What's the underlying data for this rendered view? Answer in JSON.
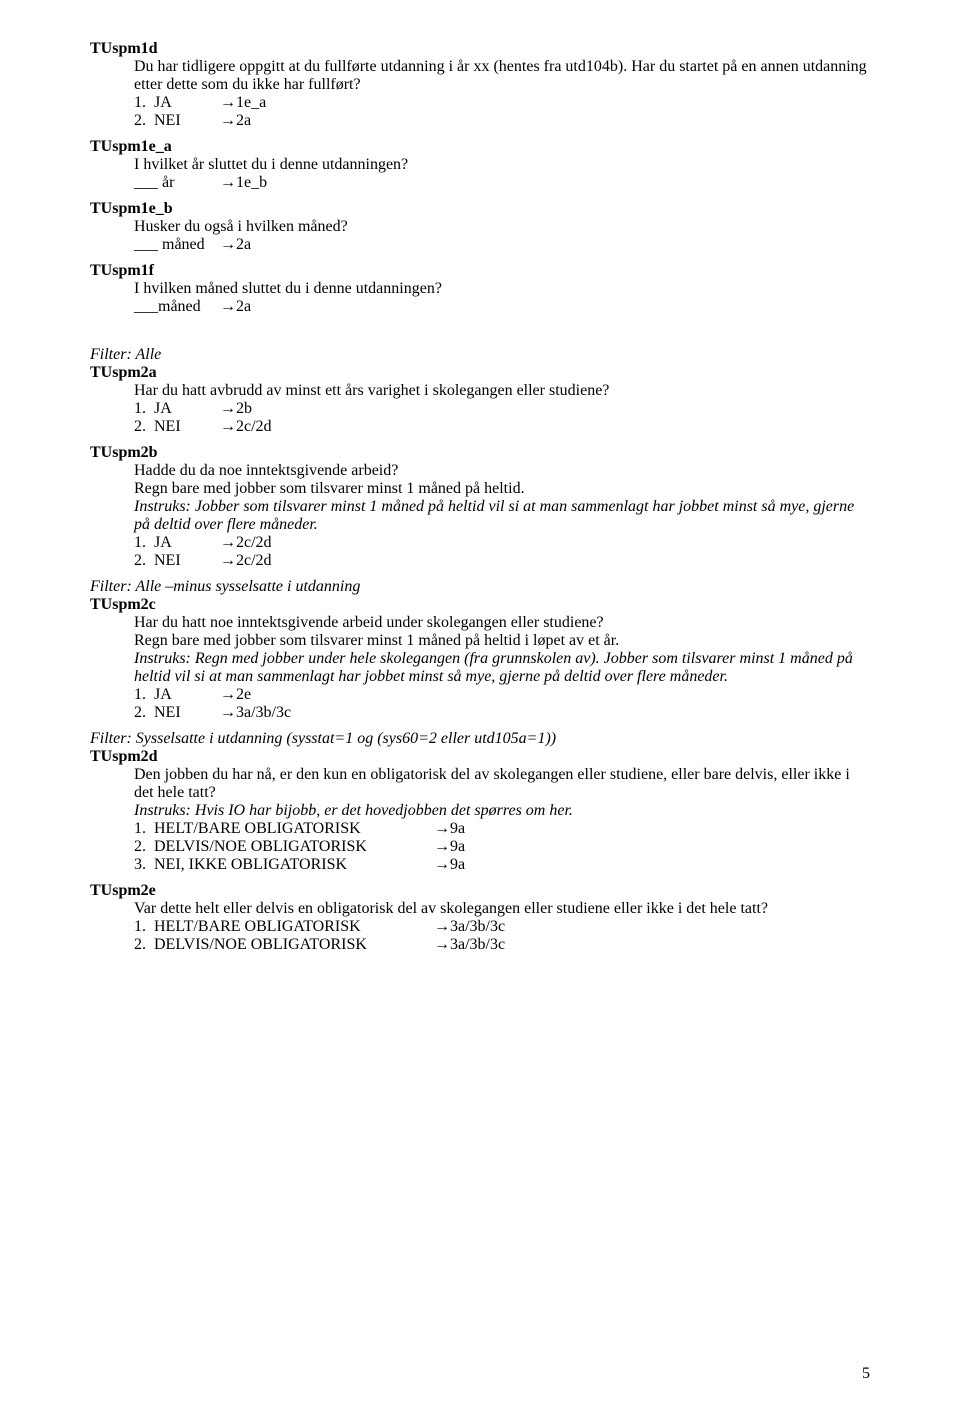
{
  "page_number": "5",
  "arrow": "→",
  "sections": {
    "s1": {
      "heading": "TUspm1d",
      "lines": [
        "Du har tidligere oppgitt at du fullførte utdanning i år xx (hentes fra utd104b). Har du startet på en annen utdanning etter dette som du ikke har fullført?"
      ],
      "options": [
        {
          "label": "1.  JA",
          "goto": "1e_a"
        },
        {
          "label": "2.  NEI",
          "goto": "2a"
        }
      ]
    },
    "s2": {
      "heading": "TUspm1e_a",
      "lines": [
        "I hvilket år sluttet du i denne utdanningen?"
      ],
      "options": [
        {
          "label": "___ år",
          "goto": "1e_b"
        }
      ]
    },
    "s3": {
      "heading": "TUspm1e_b",
      "lines": [
        "Husker du også i hvilken måned?"
      ],
      "options": [
        {
          "label": "___ måned",
          "goto": "2a"
        }
      ]
    },
    "s4": {
      "heading": "TUspm1f",
      "lines": [
        "I hvilken måned sluttet du i denne utdanningen?"
      ],
      "options": [
        {
          "label": "___måned",
          "goto": "2a"
        }
      ]
    },
    "s5": {
      "filter": "Filter: Alle",
      "heading": "TUspm2a",
      "lines": [
        "Har du hatt avbrudd av minst ett års varighet i skolegangen eller studiene?"
      ],
      "options": [
        {
          "label": "1.  JA",
          "goto": "2b"
        },
        {
          "label": "2.  NEI",
          "goto": "2c/2d"
        }
      ]
    },
    "s6": {
      "heading": "TUspm2b",
      "lines": [
        "Hadde du da noe inntektsgivende arbeid?",
        "Regn bare med jobber som tilsvarer minst 1 måned på heltid."
      ],
      "instruks": "Instruks: Jobber som tilsvarer minst 1 måned på heltid vil si at man sammenlagt har jobbet minst så mye, gjerne på deltid over flere måneder.",
      "options": [
        {
          "label": "1.  JA",
          "goto": "2c/2d"
        },
        {
          "label": "2.  NEI",
          "goto": "2c/2d"
        }
      ]
    },
    "s7": {
      "filter": "Filter: Alle –minus sysselsatte i utdanning",
      "heading": "TUspm2c",
      "lines": [
        "Har du hatt noe inntektsgivende arbeid under skolegangen eller studiene?",
        "Regn bare med jobber som tilsvarer minst 1 måned på heltid i løpet av et år."
      ],
      "instruks": "Instruks: Regn med jobber under hele skolegangen (fra grunnskolen av). Jobber som tilsvarer minst 1 måned på heltid vil si at man sammenlagt har jobbet minst så mye, gjerne på deltid over flere måneder.",
      "options": [
        {
          "label": "1.  JA",
          "goto": "2e"
        },
        {
          "label": "2.  NEI",
          "goto": "3a/3b/3c"
        }
      ]
    },
    "s8": {
      "filter": "Filter: Sysselsatte i utdanning (sysstat=1 og (sys60=2 eller utd105a=1))",
      "heading": "TUspm2d",
      "lines": [
        "Den jobben du har nå, er den kun en obligatorisk del av skolegangen eller studiene, eller bare delvis, eller ikke i det hele tatt?"
      ],
      "instruks": "Instruks: Hvis IO har bijobb, er det hovedjobben det spørres om her.",
      "options": [
        {
          "label": "1.  HELT/BARE OBLIGATORISK",
          "goto": "9a"
        },
        {
          "label": "2.  DELVIS/NOE OBLIGATORISK",
          "goto": "9a"
        },
        {
          "label": "3.  NEI, IKKE OBLIGATORISK",
          "goto": "9a"
        }
      ]
    },
    "s9": {
      "heading": "TUspm2e",
      "lines": [
        "Var dette helt eller delvis en obligatorisk del av skolegangen eller studiene eller ikke i det hele tatt?"
      ],
      "options": [
        {
          "label": "1.  HELT/BARE OBLIGATORISK",
          "goto": "3a/3b/3c"
        },
        {
          "label": "2.  DELVIS/NOE OBLIGATORISK",
          "goto": "3a/3b/3c"
        }
      ]
    }
  }
}
